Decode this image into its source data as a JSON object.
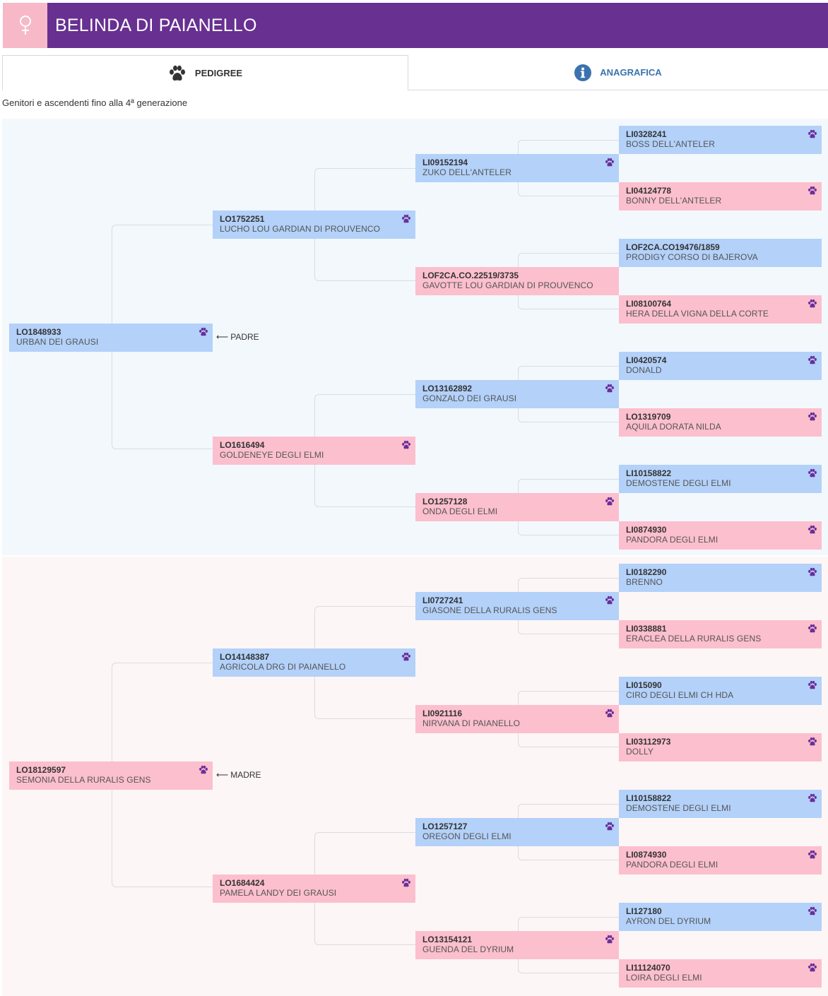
{
  "header": {
    "title": "BELINDA DI PAIANELLO",
    "sex_icon": "female-icon",
    "bg_color": "#673091",
    "sex_box_color": "#f7b8c8"
  },
  "tabs": [
    {
      "label": "PEDIGREE",
      "icon": "paw-icon",
      "active": true
    },
    {
      "label": "ANAGRAFICA",
      "icon": "info-icon",
      "active": false
    }
  ],
  "subtitle": "Genitori e ascendenti fino alla 4ª generazione",
  "labels": {
    "padre": "PADRE",
    "madre": "MADRE"
  },
  "pedigree": {
    "padre": {
      "reg": "LO1848933",
      "name": "URBAN DEI GRAUSI"
    },
    "madre": {
      "reg": "LO18129597",
      "name": "SEMONIA DELLA RURALIS GENS"
    },
    "g2": [
      {
        "reg": "LO1752251",
        "name": "LUCHO LOU GARDIAN DI PROUVENCO"
      },
      {
        "reg": "LO1616494",
        "name": "GOLDENEYE DEGLI ELMI"
      },
      {
        "reg": "LO14148387",
        "name": "AGRICOLA DRG DI PAIANELLO"
      },
      {
        "reg": "LO1684424",
        "name": "PAMELA LANDY DEI GRAUSI"
      }
    ],
    "g3": [
      {
        "reg": "LI09152194",
        "name": "ZUKO DELL'ANTELER"
      },
      {
        "reg": "LOF2CA.CO.22519/3735",
        "name": "GAVOTTE LOU GARDIAN DI PROUVENCO"
      },
      {
        "reg": "LO13162892",
        "name": "GONZALO DEI GRAUSI"
      },
      {
        "reg": "LO1257128",
        "name": "ONDA DEGLI ELMI"
      },
      {
        "reg": "LI0727241",
        "name": "GIASONE DELLA RURALIS GENS"
      },
      {
        "reg": "LI0921116",
        "name": "NIRVANA DI PAIANELLO"
      },
      {
        "reg": "LO1257127",
        "name": "OREGON DEGLI ELMI"
      },
      {
        "reg": "LO13154121",
        "name": "GUENDA DEL DYRIUM"
      }
    ],
    "g4": [
      {
        "reg": "LI0328241",
        "name": "BOSS DELL'ANTELER"
      },
      {
        "reg": "LI04124778",
        "name": "BONNY DELL'ANTELER"
      },
      {
        "reg": "LOF2CA.CO19476/1859",
        "name": "PRODIGY CORSO DI BAJEROVA"
      },
      {
        "reg": "LI08100764",
        "name": "HERA DELLA VIGNA DELLA CORTE"
      },
      {
        "reg": "LI0420574",
        "name": "DONALD"
      },
      {
        "reg": "LO1319709",
        "name": "AQUILA DORATA NILDA"
      },
      {
        "reg": "LI10158822",
        "name": "DEMOSTENE DEGLI ELMI"
      },
      {
        "reg": "LI0874930",
        "name": "PANDORA DEGLI ELMI"
      },
      {
        "reg": "LI0182290",
        "name": "BRENNO"
      },
      {
        "reg": "LI0338881",
        "name": "ERACLEA DELLA RURALIS GENS"
      },
      {
        "reg": "LI015090",
        "name": "CIRO DEGLI ELMI CH HDA"
      },
      {
        "reg": "LI03112973",
        "name": "DOLLY"
      },
      {
        "reg": "LI10158822",
        "name": "DEMOSTENE DEGLI ELMI"
      },
      {
        "reg": "LI0874930",
        "name": "PANDORA DEGLI ELMI"
      },
      {
        "reg": "LI127180",
        "name": "AYRON DEL DYRIUM"
      },
      {
        "reg": "LI11124070",
        "name": "LOIRA DEGLI ELMI"
      }
    ]
  },
  "colors": {
    "male": "#b3d1f9",
    "female": "#fcbfcd",
    "paw": "#6a2e9a",
    "tab_link": "#3a73ad"
  }
}
